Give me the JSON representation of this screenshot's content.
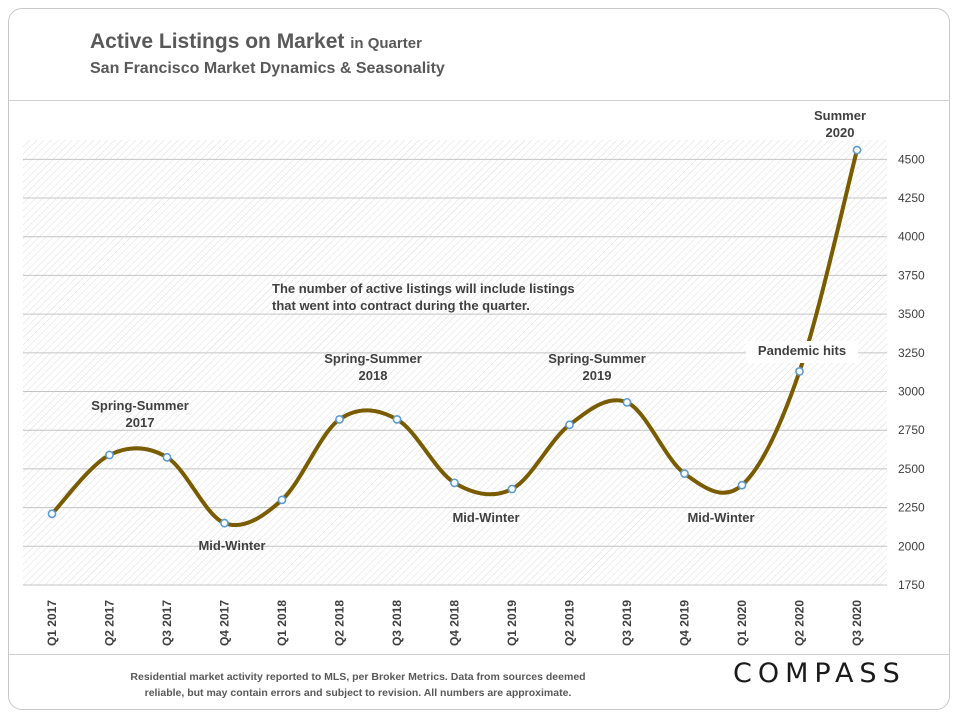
{
  "header": {
    "title_main": "Active Listings on Market",
    "title_suffix": "in Quarter",
    "subtitle": "San Francisco Market Dynamics & Seasonality"
  },
  "chart_data": {
    "type": "line",
    "categories": [
      "Q1 2017",
      "Q2 2017",
      "Q3 2017",
      "Q4 2017",
      "Q1 2018",
      "Q2 2018",
      "Q3 2018",
      "Q4 2018",
      "Q1 2019",
      "Q2 2019",
      "Q3 2019",
      "Q4 2019",
      "Q1 2020",
      "Q2 2020",
      "Q3 2020"
    ],
    "series": [
      {
        "name": "Active Listings",
        "values": [
          2210,
          2590,
          2575,
          2150,
          2300,
          2820,
          2820,
          2410,
          2370,
          2785,
          2930,
          2470,
          2395,
          3130,
          4560
        ],
        "color": "#7a5c00"
      }
    ],
    "ylim": [
      1750,
      4625
    ],
    "yticks": [
      1750,
      2000,
      2250,
      2500,
      2750,
      3000,
      3250,
      3500,
      3750,
      4000,
      4250,
      4500
    ],
    "grid": true,
    "y_axis_side": "right",
    "annotations": [
      {
        "id": "spring2017",
        "lines": [
          "Spring-Summer",
          "2017"
        ]
      },
      {
        "id": "midwinter1",
        "lines": [
          "Mid-Winter"
        ]
      },
      {
        "id": "spring2018",
        "lines": [
          "Spring-Summer",
          "2018"
        ]
      },
      {
        "id": "midwinter2",
        "lines": [
          "Mid-Winter"
        ]
      },
      {
        "id": "spring2019",
        "lines": [
          "Spring-Summer",
          "2019"
        ]
      },
      {
        "id": "midwinter3",
        "lines": [
          "Mid-Winter"
        ]
      },
      {
        "id": "pandemic",
        "lines": [
          "Pandemic hits"
        ]
      },
      {
        "id": "summer2020",
        "lines": [
          "Summer",
          "2020"
        ]
      },
      {
        "id": "note",
        "lines": [
          "The number of active listings will include listings",
          "that went into contract during the quarter."
        ]
      }
    ]
  },
  "footer": {
    "note_line1": "Residential market activity reported to MLS, per Broker Metrics. Data from sources deemed",
    "note_line2": "reliable, but may contain errors and subject to revision. All numbers are approximate.",
    "logo": "COMPASS"
  }
}
